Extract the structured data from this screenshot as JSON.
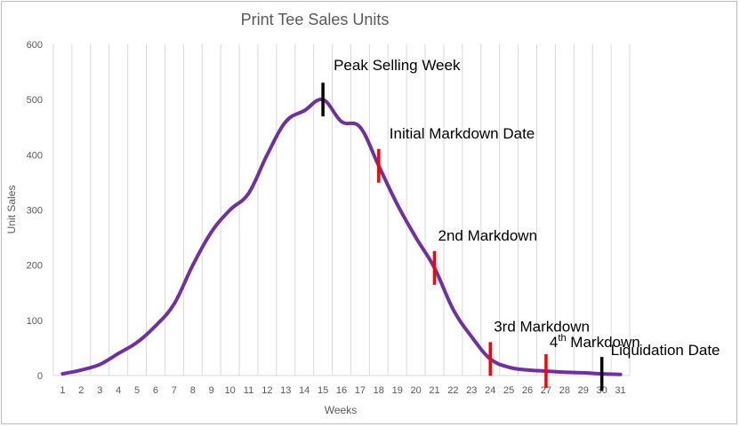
{
  "chart_data": {
    "type": "line",
    "title": "Print Tee Sales Units",
    "xlabel": "Weeks",
    "ylabel": "Unit Sales",
    "ylim": [
      0,
      600
    ],
    "yticks": [
      0,
      100,
      200,
      300,
      400,
      500,
      600
    ],
    "grid": "vertical",
    "x": [
      1,
      2,
      3,
      4,
      5,
      6,
      7,
      8,
      9,
      10,
      11,
      12,
      13,
      14,
      15,
      16,
      17,
      18,
      19,
      20,
      21,
      22,
      23,
      24,
      25,
      26,
      27,
      28,
      29,
      30,
      31
    ],
    "categories": [
      "1",
      "2",
      "3",
      "4",
      "5",
      "6",
      "7",
      "8",
      "9",
      "10",
      "11",
      "12",
      "13",
      "14",
      "15",
      "16",
      "17",
      "18",
      "19",
      "20",
      "21",
      "22",
      "23",
      "24",
      "25",
      "26",
      "27",
      "28",
      "29",
      "30",
      "31"
    ],
    "series": [
      {
        "color": "#7030a0",
        "values": [
          3,
          10,
          20,
          40,
          60,
          90,
          130,
          200,
          260,
          300,
          330,
          400,
          460,
          480,
          500,
          460,
          450,
          380,
          310,
          250,
          195,
          120,
          70,
          30,
          15,
          10,
          8,
          6,
          5,
          3,
          2
        ]
      }
    ],
    "annotations": [
      {
        "week": 15,
        "label": "Peak Selling Week",
        "sup": "",
        "rest": "",
        "color": "#000000"
      },
      {
        "week": 18,
        "label": "Initial Markdown Date",
        "sup": "",
        "rest": "",
        "color": "#ff0000"
      },
      {
        "week": 21,
        "label": "2nd Markdown",
        "sup": "",
        "rest": "",
        "color": "#ff0000"
      },
      {
        "week": 24,
        "label": "3rd Markdown",
        "sup": "",
        "rest": "",
        "color": "#ff0000"
      },
      {
        "week": 27,
        "label": "4",
        "sup": "th",
        "rest": " Markdown",
        "color": "#ff0000"
      },
      {
        "week": 30,
        "label": "Liquidation Date",
        "sup": "",
        "rest": "",
        "color": "#000000"
      }
    ]
  },
  "colors": {
    "line": "#7030a0",
    "text": "#595959",
    "grid": "#d9d9d9",
    "markdown_marker": "#ff0000",
    "event_marker": "#000000"
  }
}
